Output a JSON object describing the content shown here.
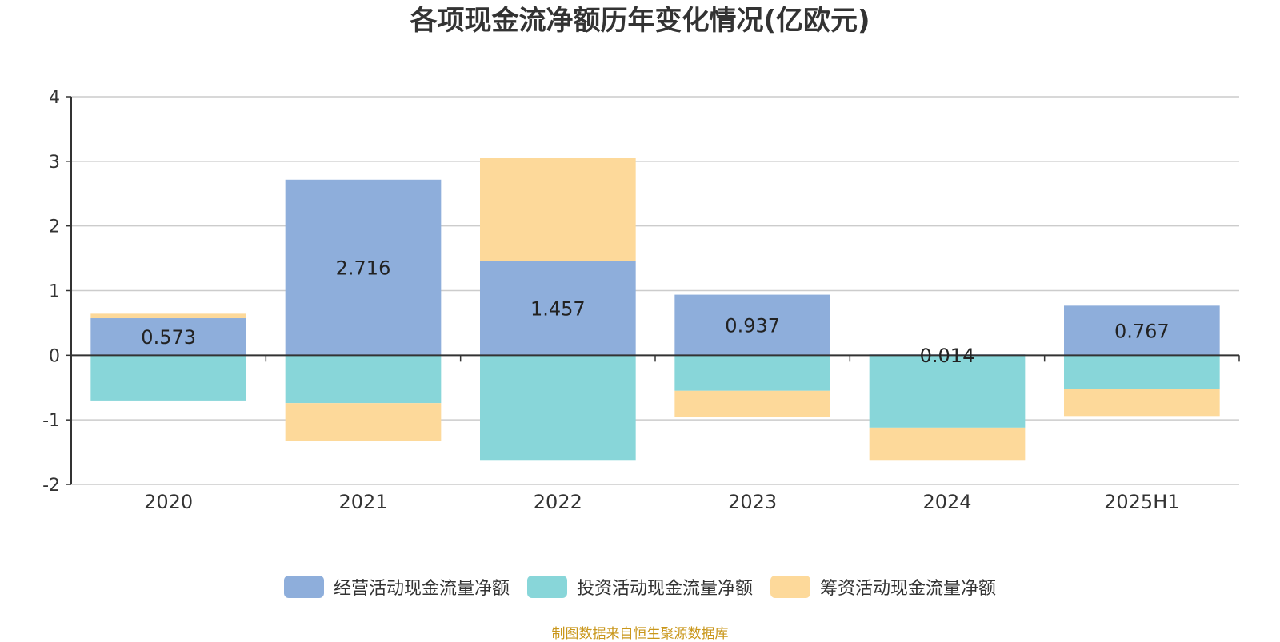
{
  "chart_data": {
    "type": "bar",
    "stacked": true,
    "title": "各项现金流净额历年变化情况(亿欧元)",
    "categories": [
      "2020",
      "2021",
      "2022",
      "2023",
      "2024",
      "2025H1"
    ],
    "ylim": [
      -2,
      4
    ],
    "yticks": [
      -2,
      -1,
      0,
      1,
      2,
      3,
      4
    ],
    "grid": true,
    "legend_position": "bottom",
    "series": [
      {
        "name": "经营活动现金流量净额",
        "color": "#8eaedb",
        "values": [
          0.573,
          2.716,
          1.457,
          0.937,
          0.014,
          0.767
        ],
        "labels": [
          "0.573",
          "2.716",
          "1.457",
          "0.937",
          "0.014",
          "0.767"
        ]
      },
      {
        "name": "投资活动现金流量净额",
        "color": "#88d6d9",
        "values": [
          -0.7,
          -0.74,
          -1.62,
          -0.55,
          -1.12,
          -0.52
        ]
      },
      {
        "name": "筹资活动现金流量净额",
        "color": "#fdd99a",
        "values": [
          0.07,
          -0.58,
          1.6,
          -0.4,
          -0.5,
          -0.42
        ]
      }
    ]
  },
  "source": "制图数据来自恒生聚源数据库"
}
